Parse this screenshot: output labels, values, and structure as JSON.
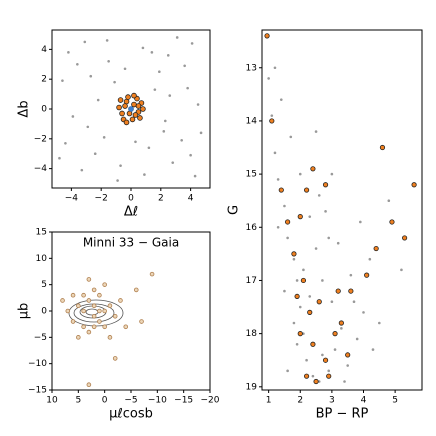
{
  "chart_data": [
    {
      "type": "scatter",
      "xlabel": "Δℓ",
      "ylabel": "Δb",
      "xlim": [
        -5.3,
        5.3
      ],
      "ylim": [
        -5.3,
        5.3
      ],
      "xticks": [
        {
          "value": -4,
          "label": "−4"
        },
        {
          "value": -2,
          "label": "−2"
        },
        0,
        2,
        4
      ],
      "yticks": [
        {
          "value": -4,
          "label": "−4"
        },
        {
          "value": -2,
          "label": "−2"
        },
        0,
        2,
        4
      ],
      "series": [
        {
          "color": "#999999",
          "edgecolor": "none",
          "size": 1.3,
          "x": [
            -4.2,
            -3.1,
            -1.5,
            0.8,
            2.5,
            4.1,
            -4.6,
            -2.7,
            1.9,
            3.8,
            -3.9,
            -2.2,
            2.3,
            4.5,
            -4.4,
            -1.8,
            1.2,
            3.4,
            -3.3,
            -0.7,
            0.9,
            2.8,
            4.3,
            -2.9,
            1.6,
            -1.1,
            3.1,
            -0.4,
            2.2,
            -4.8,
            0.3,
            4.7,
            -1.6,
            3.6,
            -3.6,
            1.4,
            -2.4,
            2.6,
            -0.9,
            4.0
          ],
          "y": [
            3.8,
            4.5,
            3.2,
            4.1,
            3.6,
            4.4,
            1.9,
            2.2,
            2.5,
            1.4,
            -0.5,
            0.6,
            -0.8,
            0.3,
            -2.3,
            -1.9,
            -2.6,
            -2.1,
            -4.1,
            -3.8,
            -4.4,
            -3.6,
            -4.5,
            -1.2,
            1.3,
            1.8,
            4.8,
            2.7,
            -1.5,
            -3.3,
            -2.2,
            -1.6,
            4.6,
            2.9,
            3.0,
            3.8,
            -3.0,
            0.9,
            -4.8,
            -3.1
          ]
        },
        {
          "color": "#f08020",
          "edgecolor": "#222222",
          "size": 2.4,
          "x": [
            0.2,
            -0.3,
            0.5,
            -0.6,
            0.1,
            0.7,
            -0.2,
            -0.8,
            0.4,
            0.6,
            -0.5,
            0.0,
            0.3,
            -0.4,
            0.8,
            -0.1,
            0.2,
            -0.7,
            0.5,
            -0.3
          ],
          "y": [
            0.3,
            0.5,
            -0.2,
            -0.3,
            -0.7,
            0.4,
            0.8,
            0.1,
            0.7,
            -0.6,
            -0.7,
            0.0,
            -0.4,
            0.2,
            0.0,
            -0.3,
            0.9,
            0.6,
            0.2,
            -0.9
          ]
        },
        {
          "color": "#3a7fd0",
          "edgecolor": "none",
          "size": 2.6,
          "x": [
            0
          ],
          "y": [
            0
          ]
        }
      ]
    },
    {
      "type": "scatter",
      "title": "Minni 33  −  Gaia",
      "xlabel": "μℓcosb",
      "ylabel": "μb",
      "xlim": [
        10,
        -20
      ],
      "ylim": [
        -15,
        15
      ],
      "xticks": [
        10,
        5,
        0,
        {
          "value": -5,
          "label": "−5"
        },
        {
          "value": -10,
          "label": "−10"
        },
        {
          "value": -15,
          "label": "−15"
        },
        {
          "value": -20,
          "label": "−20"
        }
      ],
      "yticks": [
        15,
        10,
        5,
        0,
        {
          "value": -5,
          "label": "−5"
        },
        {
          "value": -10,
          "label": "−10"
        },
        {
          "value": -15,
          "label": "−15"
        }
      ],
      "series": [
        {
          "color": "#ecd6b8",
          "edgecolor": "#b08050",
          "size": 1.9,
          "x": [
            3,
            2,
            0,
            5,
            1,
            4,
            -1,
            2,
            6,
            3,
            -2,
            1,
            4,
            0,
            7,
            2,
            -3,
            5,
            3,
            -4,
            1,
            2,
            8,
            -1,
            4,
            -6,
            -2,
            3,
            -9,
            0,
            6,
            -7
          ],
          "y": [
            2,
            -1,
            0,
            1,
            3,
            -3,
            1,
            4,
            -2,
            -4,
            -1,
            -2,
            3,
            -3,
            0,
            1,
            2,
            -5,
            6,
            -3,
            0,
            -3,
            2,
            -5,
            0,
            4,
            -9,
            -14,
            7,
            5,
            3,
            -2
          ]
        }
      ]
    },
    {
      "type": "scatter",
      "xlabel": "BP − RP",
      "ylabel": "G",
      "xlim": [
        0.79,
        5.85
      ],
      "ylim": [
        19.06,
        12.29
      ],
      "xticks": [
        1,
        2,
        3,
        4,
        5
      ],
      "yticks": [
        13,
        14,
        15,
        16,
        17,
        18,
        19
      ],
      "series": [
        {
          "color": "#999999",
          "edgecolor": "none",
          "size": 1.3,
          "x": [
            1.0,
            1.1,
            1.2,
            1.3,
            1.5,
            1.6,
            1.8,
            1.9,
            2.0,
            2.1,
            2.2,
            2.4,
            2.6,
            2.9,
            3.1,
            3.3,
            3.0,
            2.7,
            2.5,
            2.3,
            2.0,
            1.7,
            1.4,
            3.5,
            3.8,
            4.0,
            3.6,
            3.2,
            2.8,
            4.2,
            4.5,
            1.6,
            1.9,
            2.3,
            2.7,
            3.4,
            1.2,
            2.5,
            3.0,
            4.8,
            5.2,
            1.8,
            2.1,
            3.7,
            2.9,
            4.3,
            1.5,
            2.6,
            3.9,
            1.3
          ],
          "y": [
            13.2,
            13.9,
            14.6,
            15.1,
            15.6,
            16.2,
            16.6,
            17.0,
            17.5,
            18.0,
            18.5,
            18.8,
            18.9,
            18.7,
            18.3,
            17.9,
            17.4,
            17.0,
            16.4,
            15.8,
            15.0,
            14.3,
            13.6,
            18.6,
            18.1,
            17.6,
            16.9,
            16.3,
            15.7,
            16.6,
            17.8,
            18.7,
            18.2,
            17.3,
            18.4,
            18.9,
            13.0,
            14.2,
            15.0,
            15.5,
            16.8,
            17.8,
            16.8,
            17.4,
            16.2,
            18.3,
            17.2,
            15.4,
            15.9,
            16.0
          ]
        },
        {
          "color": "#f08020",
          "edgecolor": "#222222",
          "size": 2.2,
          "x": [
            0.95,
            1.1,
            1.4,
            1.6,
            2.0,
            2.2,
            2.4,
            2.8,
            4.6,
            5.6,
            1.8,
            2.1,
            2.3,
            2.6,
            2.0,
            2.4,
            2.8,
            3.1,
            3.3,
            2.9,
            3.5,
            3.6,
            4.1,
            4.4,
            4.9,
            5.3,
            2.2,
            3.2,
            1.9,
            2.5
          ],
          "y": [
            12.4,
            14.0,
            15.3,
            15.9,
            15.8,
            15.3,
            14.9,
            15.2,
            14.5,
            15.2,
            16.5,
            17.0,
            17.6,
            17.4,
            18.0,
            18.2,
            18.5,
            18.0,
            17.8,
            18.8,
            18.4,
            17.2,
            16.9,
            16.4,
            15.9,
            16.2,
            18.8,
            17.2,
            17.3,
            18.9
          ]
        }
      ]
    }
  ]
}
